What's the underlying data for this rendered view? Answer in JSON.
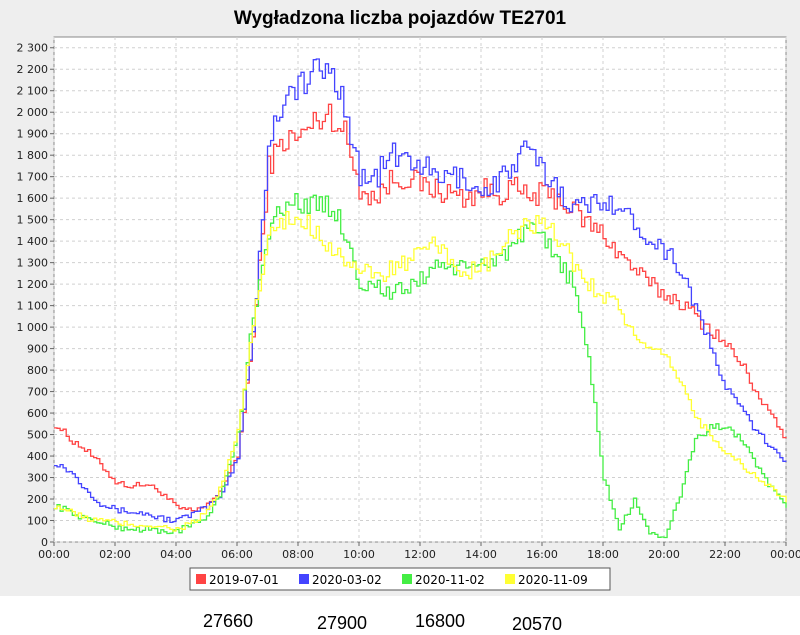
{
  "chart_data": {
    "type": "line",
    "title": "Wygładzona liczba pojazdów  TE2701",
    "xlabel": "",
    "ylabel": "",
    "x_ticks": [
      "00:00",
      "02:00",
      "04:00",
      "06:00",
      "08:00",
      "10:00",
      "12:00",
      "14:00",
      "16:00",
      "18:00",
      "20:00",
      "22:00",
      "00:00"
    ],
    "xlim_hours": [
      0,
      24
    ],
    "ylim": [
      0,
      2350
    ],
    "y_ticks": [
      0,
      100,
      200,
      300,
      400,
      500,
      600,
      700,
      800,
      900,
      1000,
      1100,
      1200,
      1300,
      1400,
      1500,
      1600,
      1700,
      1800,
      1900,
      2000,
      2100,
      2200,
      2300
    ],
    "y_tick_labels": [
      "0",
      "100",
      "200",
      "300",
      "400",
      "500",
      "600",
      "700",
      "800",
      "900",
      "1 000",
      "1 100",
      "1 200",
      "1 300",
      "1 400",
      "1 500",
      "1 600",
      "1 700",
      "1 800",
      "1 900",
      "2 000",
      "2 100",
      "2 200",
      "2 300"
    ],
    "grid": true,
    "legend_position": "bottom",
    "x_hours": [
      0,
      0.5,
      1,
      1.5,
      2,
      2.5,
      3,
      3.5,
      4,
      4.5,
      5,
      5.5,
      6,
      6.5,
      7,
      7.5,
      8,
      8.5,
      9,
      9.5,
      10,
      10.5,
      11,
      11.5,
      12,
      12.5,
      13,
      13.5,
      14,
      14.5,
      15,
      15.5,
      16,
      16.5,
      17,
      17.5,
      18,
      18.5,
      19,
      19.5,
      20,
      20.5,
      21,
      21.5,
      22,
      22.5,
      23,
      23.5,
      24
    ],
    "series": [
      {
        "name": "2019-07-01",
        "color": "#ff4444",
        "values": [
          550,
          480,
          430,
          360,
          280,
          260,
          270,
          230,
          160,
          140,
          170,
          260,
          400,
          950,
          1750,
          1870,
          1880,
          1950,
          2000,
          1900,
          1650,
          1600,
          1680,
          1700,
          1660,
          1640,
          1620,
          1600,
          1640,
          1620,
          1650,
          1600,
          1620,
          1600,
          1540,
          1480,
          1430,
          1340,
          1270,
          1200,
          1150,
          1120,
          1050,
          990,
          920,
          830,
          700,
          580,
          480
        ]
      },
      {
        "name": "2020-03-02",
        "color": "#4444ff",
        "values": [
          370,
          330,
          250,
          180,
          150,
          140,
          130,
          110,
          100,
          130,
          160,
          230,
          400,
          980,
          1850,
          2080,
          2120,
          2180,
          2200,
          2050,
          1700,
          1690,
          1800,
          1780,
          1760,
          1690,
          1700,
          1690,
          1620,
          1680,
          1740,
          1830,
          1720,
          1650,
          1560,
          1560,
          1610,
          1550,
          1480,
          1420,
          1360,
          1280,
          1100,
          900,
          720,
          620,
          520,
          430,
          380
        ]
      },
      {
        "name": "2020-11-02",
        "color": "#44ee44",
        "values": [
          170,
          140,
          110,
          90,
          70,
          60,
          60,
          50,
          50,
          80,
          120,
          250,
          500,
          1050,
          1460,
          1550,
          1590,
          1560,
          1570,
          1450,
          1200,
          1200,
          1150,
          1180,
          1220,
          1300,
          1280,
          1260,
          1300,
          1320,
          1380,
          1450,
          1400,
          1320,
          1200,
          850,
          300,
          60,
          190,
          50,
          10,
          220,
          480,
          530,
          540,
          480,
          350,
          250,
          150
        ]
      },
      {
        "name": "2020-11-09",
        "color": "#ffff33",
        "values": [
          170,
          140,
          110,
          100,
          90,
          80,
          80,
          70,
          60,
          90,
          140,
          270,
          520,
          1020,
          1420,
          1480,
          1510,
          1460,
          1380,
          1320,
          1260,
          1230,
          1270,
          1300,
          1340,
          1380,
          1300,
          1260,
          1260,
          1350,
          1420,
          1480,
          1460,
          1420,
          1300,
          1200,
          1150,
          1100,
          950,
          880,
          860,
          760,
          580,
          500,
          420,
          360,
          300,
          250,
          190
        ]
      }
    ],
    "totals": [
      "27660",
      "27900",
      "16800",
      "20570"
    ]
  }
}
